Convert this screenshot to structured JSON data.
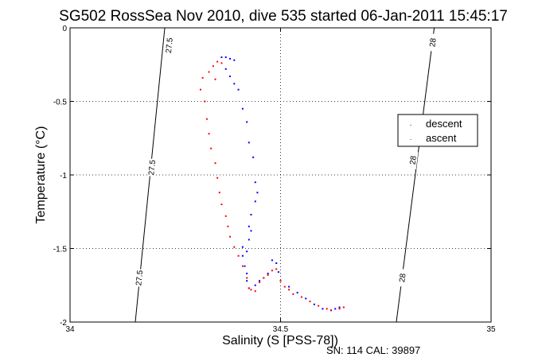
{
  "chart_data": {
    "type": "scatter",
    "title": "SG502 RossSea Nov 2010, dive 535 started 06-Jan-2011 15:45:17",
    "xlabel": "Salinity (S [PSS-78])",
    "ylabel": "Temperature (°C)",
    "footer": "SN: 114  CAL: 39897",
    "xlim": [
      34,
      35
    ],
    "ylim": [
      -2,
      0
    ],
    "xticks": [
      "34",
      "34.5",
      "35"
    ],
    "yticks": [
      "0",
      "-0.5",
      "-1",
      "-1.5",
      "-2"
    ],
    "grid": true,
    "legend": "right",
    "density_contours": [
      {
        "label": "27.5",
        "points": [
          [
            34.225,
            0
          ],
          [
            34.155,
            -2
          ]
        ],
        "label_positions": [
          [
            34.236,
            -0.12
          ],
          [
            34.195,
            -0.95
          ],
          [
            34.165,
            -1.7
          ]
        ]
      },
      {
        "label": "28",
        "points": [
          [
            34.865,
            0
          ],
          [
            34.775,
            -2
          ]
        ],
        "label_positions": [
          [
            34.862,
            -0.1
          ],
          [
            34.815,
            -0.9
          ],
          [
            34.79,
            -1.7
          ]
        ]
      }
    ],
    "series": [
      {
        "name": "descent",
        "color": "#0000ff",
        "points": [
          [
            34.36,
            -0.2
          ],
          [
            34.37,
            -0.2
          ],
          [
            34.38,
            -0.21
          ],
          [
            34.39,
            -0.22
          ],
          [
            34.37,
            -0.28
          ],
          [
            34.38,
            -0.33
          ],
          [
            34.39,
            -0.38
          ],
          [
            34.4,
            -0.42
          ],
          [
            34.41,
            -0.55
          ],
          [
            34.42,
            -0.64
          ],
          [
            34.425,
            -0.78
          ],
          [
            34.435,
            -0.88
          ],
          [
            34.44,
            -1.05
          ],
          [
            34.445,
            -1.12
          ],
          [
            34.44,
            -1.18
          ],
          [
            34.43,
            -1.27
          ],
          [
            34.425,
            -1.35
          ],
          [
            34.43,
            -1.38
          ],
          [
            34.425,
            -1.44
          ],
          [
            34.41,
            -1.49
          ],
          [
            34.42,
            -1.52
          ],
          [
            34.41,
            -1.55
          ],
          [
            34.415,
            -1.62
          ],
          [
            34.42,
            -1.67
          ],
          [
            34.42,
            -1.72
          ],
          [
            34.425,
            -1.77
          ],
          [
            34.44,
            -1.75
          ],
          [
            34.45,
            -1.72
          ],
          [
            34.46,
            -1.7
          ],
          [
            34.47,
            -1.67
          ],
          [
            34.48,
            -1.58
          ],
          [
            34.49,
            -1.6
          ],
          [
            34.495,
            -1.66
          ],
          [
            34.5,
            -1.72
          ],
          [
            34.52,
            -1.76
          ],
          [
            34.54,
            -1.8
          ],
          [
            34.56,
            -1.84
          ],
          [
            34.58,
            -1.88
          ],
          [
            34.6,
            -1.91
          ],
          [
            34.62,
            -1.92
          ],
          [
            34.63,
            -1.91
          ],
          [
            34.64,
            -1.9
          ]
        ]
      },
      {
        "name": "ascent",
        "color": "#ff0000",
        "points": [
          [
            34.35,
            -0.23
          ],
          [
            34.36,
            -0.24
          ],
          [
            34.34,
            -0.26
          ],
          [
            34.33,
            -0.3
          ],
          [
            34.345,
            -0.35
          ],
          [
            34.315,
            -0.34
          ],
          [
            34.31,
            -0.42
          ],
          [
            34.32,
            -0.5
          ],
          [
            34.325,
            -0.62
          ],
          [
            34.33,
            -0.72
          ],
          [
            34.335,
            -0.82
          ],
          [
            34.345,
            -0.92
          ],
          [
            34.35,
            -1.02
          ],
          [
            34.355,
            -1.12
          ],
          [
            34.36,
            -1.2
          ],
          [
            34.37,
            -1.28
          ],
          [
            34.375,
            -1.35
          ],
          [
            34.38,
            -1.42
          ],
          [
            34.39,
            -1.49
          ],
          [
            34.4,
            -1.55
          ],
          [
            34.41,
            -1.62
          ],
          [
            34.42,
            -1.7
          ],
          [
            34.425,
            -1.77
          ],
          [
            34.43,
            -1.78
          ],
          [
            34.44,
            -1.79
          ],
          [
            34.45,
            -1.73
          ],
          [
            34.46,
            -1.7
          ],
          [
            34.47,
            -1.68
          ],
          [
            34.48,
            -1.65
          ],
          [
            34.49,
            -1.64
          ],
          [
            34.5,
            -1.72
          ],
          [
            34.51,
            -1.76
          ],
          [
            34.52,
            -1.78
          ],
          [
            34.53,
            -1.81
          ],
          [
            34.55,
            -1.83
          ],
          [
            34.57,
            -1.86
          ],
          [
            34.59,
            -1.89
          ],
          [
            34.61,
            -1.91
          ],
          [
            34.62,
            -1.92
          ],
          [
            34.64,
            -1.91
          ],
          [
            34.65,
            -1.9
          ]
        ]
      }
    ]
  }
}
